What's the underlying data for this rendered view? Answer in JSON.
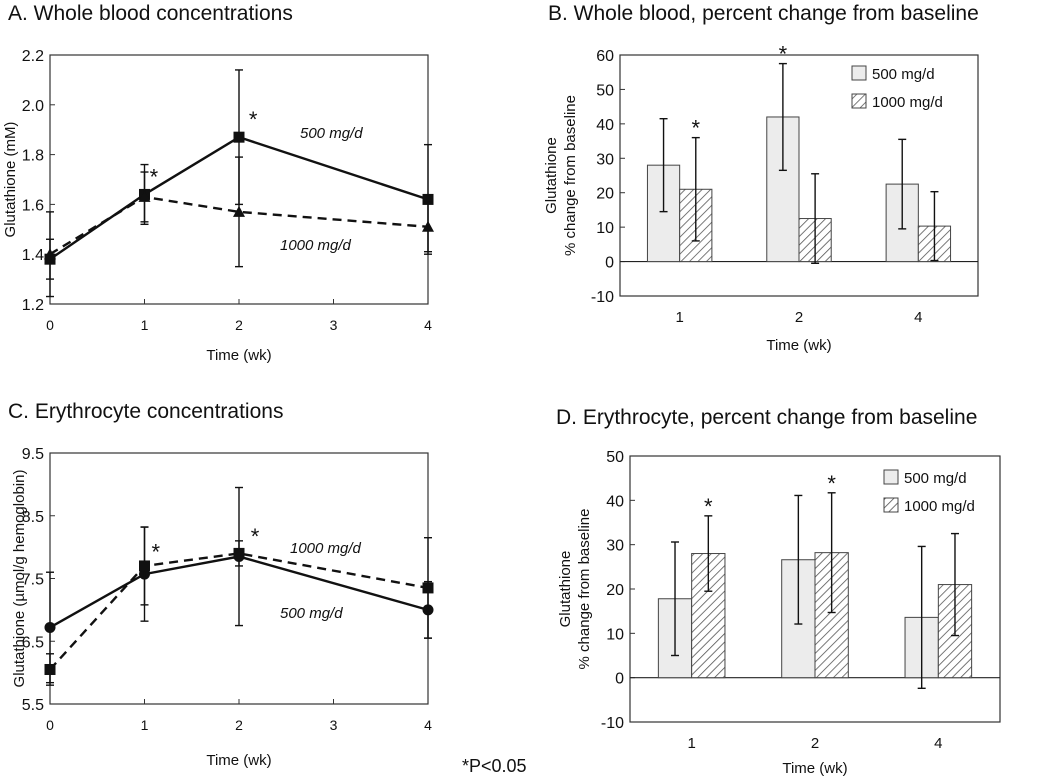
{
  "footnote": "*P<0.05",
  "chart_data": [
    {
      "id": "A",
      "type": "line",
      "title": "A.  Whole blood concentrations",
      "xlabel": "Time (wk)",
      "ylabel": "Glutathione (mM)",
      "xlim": [
        0,
        4
      ],
      "ylim": [
        1.2,
        2.2
      ],
      "xticks": [
        0,
        1,
        2,
        3,
        4
      ],
      "yticks": [
        1.2,
        1.4,
        1.6,
        1.8,
        2.0,
        2.2
      ],
      "ytick_labels": [
        "1.2",
        "1.4",
        "1.6",
        "1.8",
        "2.0",
        "2.2"
      ],
      "grid": false,
      "series": [
        {
          "name": "500 mg/d",
          "marker": "square",
          "dash": "solid",
          "x": [
            0,
            1,
            2,
            4
          ],
          "y": [
            1.38,
            1.64,
            1.87,
            1.62
          ],
          "err": [
            0.08,
            0.12,
            0.27,
            0.22
          ]
        },
        {
          "name": "1000 mg/d",
          "marker": "triangle",
          "dash": "dashed",
          "x": [
            0,
            1,
            2,
            4
          ],
          "y": [
            1.4,
            1.63,
            1.57,
            1.51
          ],
          "err": [
            0.17,
            0.1,
            0.22,
            0.1
          ]
        }
      ],
      "annotations": [
        {
          "text": "*",
          "x": 1.1,
          "y": 1.68
        },
        {
          "text": "*",
          "x": 2.15,
          "y": 1.91
        }
      ]
    },
    {
      "id": "B",
      "type": "bar",
      "title": "B.  Whole blood, percent change from baseline",
      "xlabel": "Time (wk)",
      "ylabel": [
        "Glutathione",
        "% change from baseline"
      ],
      "categories": [
        "1",
        "2",
        "4"
      ],
      "ylim": [
        -10,
        60
      ],
      "yticks": [
        -10,
        0,
        10,
        20,
        30,
        40,
        50,
        60
      ],
      "grid": false,
      "legend": "top-right",
      "series": [
        {
          "name": "500 mg/d",
          "pattern": "solid",
          "values": [
            28,
            42,
            22.5
          ],
          "err": [
            13.5,
            15.5,
            13
          ]
        },
        {
          "name": "1000 mg/d",
          "pattern": "hatch",
          "values": [
            21,
            12.5,
            10.3
          ],
          "err": [
            15,
            13,
            10
          ]
        }
      ],
      "annotations": [
        {
          "text": "*",
          "category": 0,
          "series": 1
        },
        {
          "text": "*",
          "category": 1,
          "series": 0
        }
      ]
    },
    {
      "id": "C",
      "type": "line",
      "title": "C.  Erythrocyte concentrations",
      "xlabel": "Time (wk)",
      "ylabel": "Glutathione (µmol/g hemoglobin)",
      "xlim": [
        0,
        4
      ],
      "ylim": [
        5.5,
        9.5
      ],
      "xticks": [
        0,
        1,
        2,
        3,
        4
      ],
      "yticks": [
        5.5,
        6.5,
        7.5,
        8.5,
        9.5
      ],
      "ytick_labels": [
        "5.5",
        "6.5",
        "7.5",
        "8.5",
        "9.5"
      ],
      "grid": false,
      "series": [
        {
          "name": "500 mg/d",
          "marker": "circle",
          "dash": "solid",
          "x": [
            0,
            1,
            2,
            4
          ],
          "y": [
            6.72,
            7.57,
            7.85,
            7.0
          ],
          "err": [
            0.88,
            0.75,
            1.1,
            0.45
          ]
        },
        {
          "name": "1000 mg/d",
          "marker": "square",
          "dash": "dashed",
          "x": [
            0,
            1,
            2,
            4
          ],
          "y": [
            6.05,
            7.7,
            7.9,
            7.35
          ],
          "err": [
            0.25,
            0.62,
            0.2,
            0.8
          ]
        }
      ],
      "annotations": [
        {
          "text": "*",
          "x": 1.12,
          "y": 7.8
        },
        {
          "text": "*",
          "x": 2.17,
          "y": 8.05
        }
      ]
    },
    {
      "id": "D",
      "type": "bar",
      "title": "D.  Erythrocyte, percent change from baseline",
      "xlabel": "Time (wk)",
      "ylabel": [
        "Glutathione",
        "% change from baseline"
      ],
      "categories": [
        "1",
        "2",
        "4"
      ],
      "ylim": [
        -10,
        50
      ],
      "yticks": [
        -10,
        0,
        10,
        20,
        30,
        40,
        50
      ],
      "grid": false,
      "legend": "top-right",
      "series": [
        {
          "name": "500 mg/d",
          "pattern": "solid",
          "values": [
            17.8,
            26.6,
            13.6
          ],
          "err": [
            12.8,
            14.5,
            16
          ]
        },
        {
          "name": "1000 mg/d",
          "pattern": "hatch",
          "values": [
            28,
            28.2,
            21
          ],
          "err": [
            8.5,
            13.5,
            11.5
          ]
        }
      ],
      "annotations": [
        {
          "text": "*",
          "category": 0,
          "series": 1
        },
        {
          "text": "*",
          "category": 1,
          "series": 1
        }
      ]
    }
  ],
  "series_labels": [
    {
      "panel": 0,
      "text": "500 mg/d"
    },
    {
      "panel": 0,
      "text": "1000 mg/d"
    },
    {
      "panel": 2,
      "text": "1000 mg/d"
    },
    {
      "panel": 2,
      "text": "500 mg/d"
    }
  ]
}
